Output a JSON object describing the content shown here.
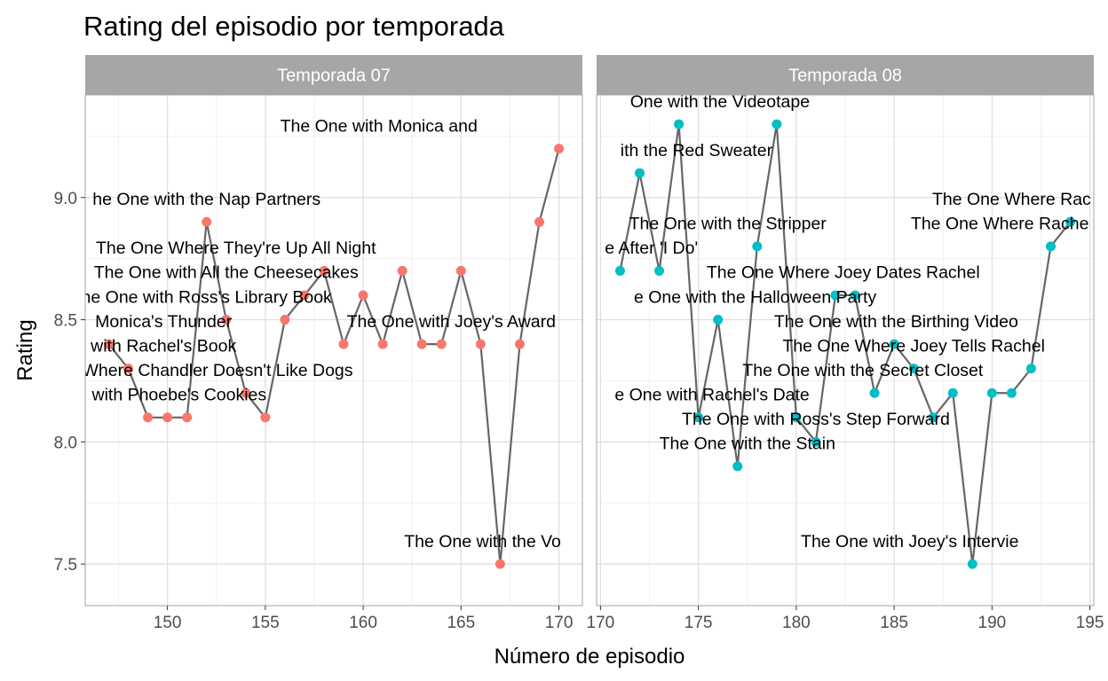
{
  "chart_data": {
    "type": "line",
    "title": "Rating del episodio por temporada",
    "xlabel": "Número de episodio",
    "ylabel": "Rating",
    "ylim": [
      7.33,
      9.42
    ],
    "y_ticks": [
      7.5,
      8.0,
      8.5,
      9.0
    ],
    "grid": true,
    "colors": {
      "panel_line": "#666666",
      "temporada_07": "#F8766D",
      "temporada_08": "#00BFC4",
      "strip": "#A6A6A6"
    },
    "panels": [
      {
        "strip": "Temporada 07",
        "color": "#F8766D",
        "xlim": [
          145.8,
          171.2
        ],
        "x_ticks": [
          150,
          155,
          160,
          165,
          170
        ],
        "points": [
          {
            "x": 147,
            "y": 8.4
          },
          {
            "x": 148,
            "y": 8.3
          },
          {
            "x": 149,
            "y": 8.1
          },
          {
            "x": 150,
            "y": 8.1
          },
          {
            "x": 151,
            "y": 8.1
          },
          {
            "x": 152,
            "y": 8.9
          },
          {
            "x": 153,
            "y": 8.5
          },
          {
            "x": 154,
            "y": 8.2
          },
          {
            "x": 155,
            "y": 8.1
          },
          {
            "x": 156,
            "y": 8.5
          },
          {
            "x": 157,
            "y": 8.6
          },
          {
            "x": 158,
            "y": 8.7
          },
          {
            "x": 159,
            "y": 8.4
          },
          {
            "x": 160,
            "y": 8.6
          },
          {
            "x": 161,
            "y": 8.4
          },
          {
            "x": 162,
            "y": 8.7
          },
          {
            "x": 163,
            "y": 8.4
          },
          {
            "x": 164,
            "y": 8.4
          },
          {
            "x": 165,
            "y": 8.7
          },
          {
            "x": 166,
            "y": 8.4
          },
          {
            "x": 167,
            "y": 7.5
          },
          {
            "x": 168,
            "y": 8.4
          },
          {
            "x": 169,
            "y": 8.9
          },
          {
            "x": 170,
            "y": 9.2
          }
        ],
        "labels": [
          {
            "text": "The One with Monica and",
            "x": 160.8,
            "y": 9.27
          },
          {
            "text": "he One with the Nap Partners",
            "x": 152.0,
            "y": 8.97
          },
          {
            "text": "The One Where They're Up All Night",
            "x": 153.5,
            "y": 8.77
          },
          {
            "text": "The One with All the Cheesecakes",
            "x": 153.0,
            "y": 8.67
          },
          {
            "text": "he One with Ross's Library Book",
            "x": 152.0,
            "y": 8.57
          },
          {
            "text": "The One with Joey's Award",
            "x": 164.5,
            "y": 8.47
          },
          {
            "text": "Monica's Thunder",
            "x": 149.8,
            "y": 8.47
          },
          {
            "text": "with Rachel's Book",
            "x": 149.8,
            "y": 8.37
          },
          {
            "text": "One Where Chandler Doesn't Like Dogs",
            "x": 151.6,
            "y": 8.27
          },
          {
            "text": "with Phoebe's Cookies",
            "x": 150.6,
            "y": 8.17
          },
          {
            "text": "The One with the Vo",
            "x": 166.1,
            "y": 7.57
          }
        ]
      },
      {
        "strip": "Temporada 08",
        "color": "#00BFC4",
        "xlim": [
          169.8,
          195.2
        ],
        "x_ticks": [
          170,
          175,
          180,
          185,
          190,
          195
        ],
        "points": [
          {
            "x": 171,
            "y": 8.7
          },
          {
            "x": 172,
            "y": 9.1
          },
          {
            "x": 173,
            "y": 8.7
          },
          {
            "x": 174,
            "y": 9.3
          },
          {
            "x": 175,
            "y": 8.1
          },
          {
            "x": 176,
            "y": 8.5
          },
          {
            "x": 177,
            "y": 7.9
          },
          {
            "x": 178,
            "y": 8.8
          },
          {
            "x": 179,
            "y": 9.3
          },
          {
            "x": 180,
            "y": 8.1
          },
          {
            "x": 181,
            "y": 8.0
          },
          {
            "x": 182,
            "y": 8.6
          },
          {
            "x": 183,
            "y": 8.6
          },
          {
            "x": 184,
            "y": 8.2
          },
          {
            "x": 185,
            "y": 8.4
          },
          {
            "x": 186,
            "y": 8.3
          },
          {
            "x": 187,
            "y": 8.1
          },
          {
            "x": 188,
            "y": 8.2
          },
          {
            "x": 189,
            "y": 7.5
          },
          {
            "x": 190,
            "y": 8.2
          },
          {
            "x": 191,
            "y": 8.2
          },
          {
            "x": 192,
            "y": 8.3
          },
          {
            "x": 193,
            "y": 8.8
          },
          {
            "x": 194,
            "y": 8.9
          }
        ],
        "labels": [
          {
            "text": "One with the Videotape",
            "x": 176.1,
            "y": 9.37
          },
          {
            "text": "ith the Red Sweater",
            "x": 174.9,
            "y": 9.17
          },
          {
            "text": "The One with the Stripper",
            "x": 176.5,
            "y": 8.87
          },
          {
            "text": "The One Where Rac",
            "x": 191.0,
            "y": 8.97
          },
          {
            "text": "The One Where Rache",
            "x": 190.4,
            "y": 8.87
          },
          {
            "text": "e After 'I Do'",
            "x": 172.6,
            "y": 8.77
          },
          {
            "text": "The One Where Joey Dates Rachel",
            "x": 182.4,
            "y": 8.67
          },
          {
            "text": "e One with the Halloween Party",
            "x": 177.9,
            "y": 8.57
          },
          {
            "text": "The One with the Birthing Video",
            "x": 185.1,
            "y": 8.47
          },
          {
            "text": "The One Where Joey Tells Rachel",
            "x": 186.0,
            "y": 8.37
          },
          {
            "text": "The One with the Secret Closet",
            "x": 183.4,
            "y": 8.27
          },
          {
            "text": "e One with Rachel's Date",
            "x": 175.7,
            "y": 8.17
          },
          {
            "text": "The One with Ross's Step Forward",
            "x": 181.0,
            "y": 8.07
          },
          {
            "text": "The One with the Stain",
            "x": 177.5,
            "y": 7.97
          },
          {
            "text": "The One with Joey's Intervie",
            "x": 185.8,
            "y": 7.57
          }
        ]
      }
    ]
  }
}
